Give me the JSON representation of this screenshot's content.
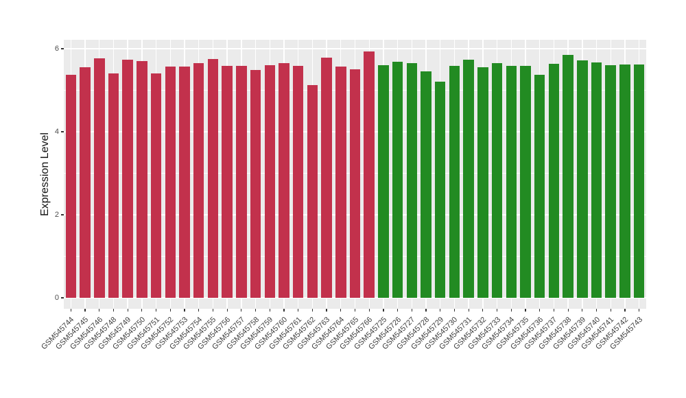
{
  "figure": {
    "background": "#FFFFFF",
    "panel_background": "#EBEBEB",
    "grid_color": "#FFFFFF",
    "tick_color": "#333333",
    "axis_text_color": "#4D4D4D",
    "axis_title_color": "#111111"
  },
  "chart_data": {
    "type": "bar",
    "title": "",
    "xlabel": "",
    "ylabel": "Expression Level",
    "ylim": [
      0,
      6.25
    ],
    "yticks_major": [
      0,
      2,
      4,
      6
    ],
    "yticks_minor": [
      1,
      3,
      5
    ],
    "grid": true,
    "legend_position": "none",
    "x_tick_rotation": 45,
    "group_colors": {
      "group1": "#C2314C",
      "group2": "#228B22"
    },
    "categories": [
      "GSM545744",
      "GSM545745",
      "GSM545746",
      "GSM545748",
      "GSM545749",
      "GSM545750",
      "GSM545751",
      "GSM545752",
      "GSM545753",
      "GSM545754",
      "GSM545755",
      "GSM545756",
      "GSM545757",
      "GSM545758",
      "GSM545759",
      "GSM545760",
      "GSM545761",
      "GSM545762",
      "GSM545763",
      "GSM545764",
      "GSM545765",
      "GSM545766",
      "GSM545725",
      "GSM545726",
      "GSM545727",
      "GSM545728",
      "GSM545729",
      "GSM545730",
      "GSM545731",
      "GSM545732",
      "GSM545733",
      "GSM545734",
      "GSM545735",
      "GSM545736",
      "GSM545737",
      "GSM545738",
      "GSM545739",
      "GSM545740",
      "GSM545741",
      "GSM545742",
      "GSM545743"
    ],
    "values": [
      5.38,
      5.55,
      5.77,
      5.4,
      5.74,
      5.7,
      5.4,
      5.57,
      5.57,
      5.65,
      5.76,
      5.58,
      5.58,
      5.48,
      5.6,
      5.66,
      5.59,
      5.12,
      5.79,
      5.57,
      5.5,
      5.93,
      5.6,
      5.69,
      5.66,
      5.46,
      5.2,
      5.58,
      5.73,
      5.55,
      5.65,
      5.59,
      5.58,
      5.38,
      5.63,
      5.85,
      5.72,
      5.67,
      5.61,
      5.62,
      5.62
    ],
    "groups": [
      "group1",
      "group1",
      "group1",
      "group1",
      "group1",
      "group1",
      "group1",
      "group1",
      "group1",
      "group1",
      "group1",
      "group1",
      "group1",
      "group1",
      "group1",
      "group1",
      "group1",
      "group1",
      "group1",
      "group1",
      "group1",
      "group1",
      "group2",
      "group2",
      "group2",
      "group2",
      "group2",
      "group2",
      "group2",
      "group2",
      "group2",
      "group2",
      "group2",
      "group2",
      "group2",
      "group2",
      "group2",
      "group2",
      "group2",
      "group2",
      "group2"
    ]
  }
}
